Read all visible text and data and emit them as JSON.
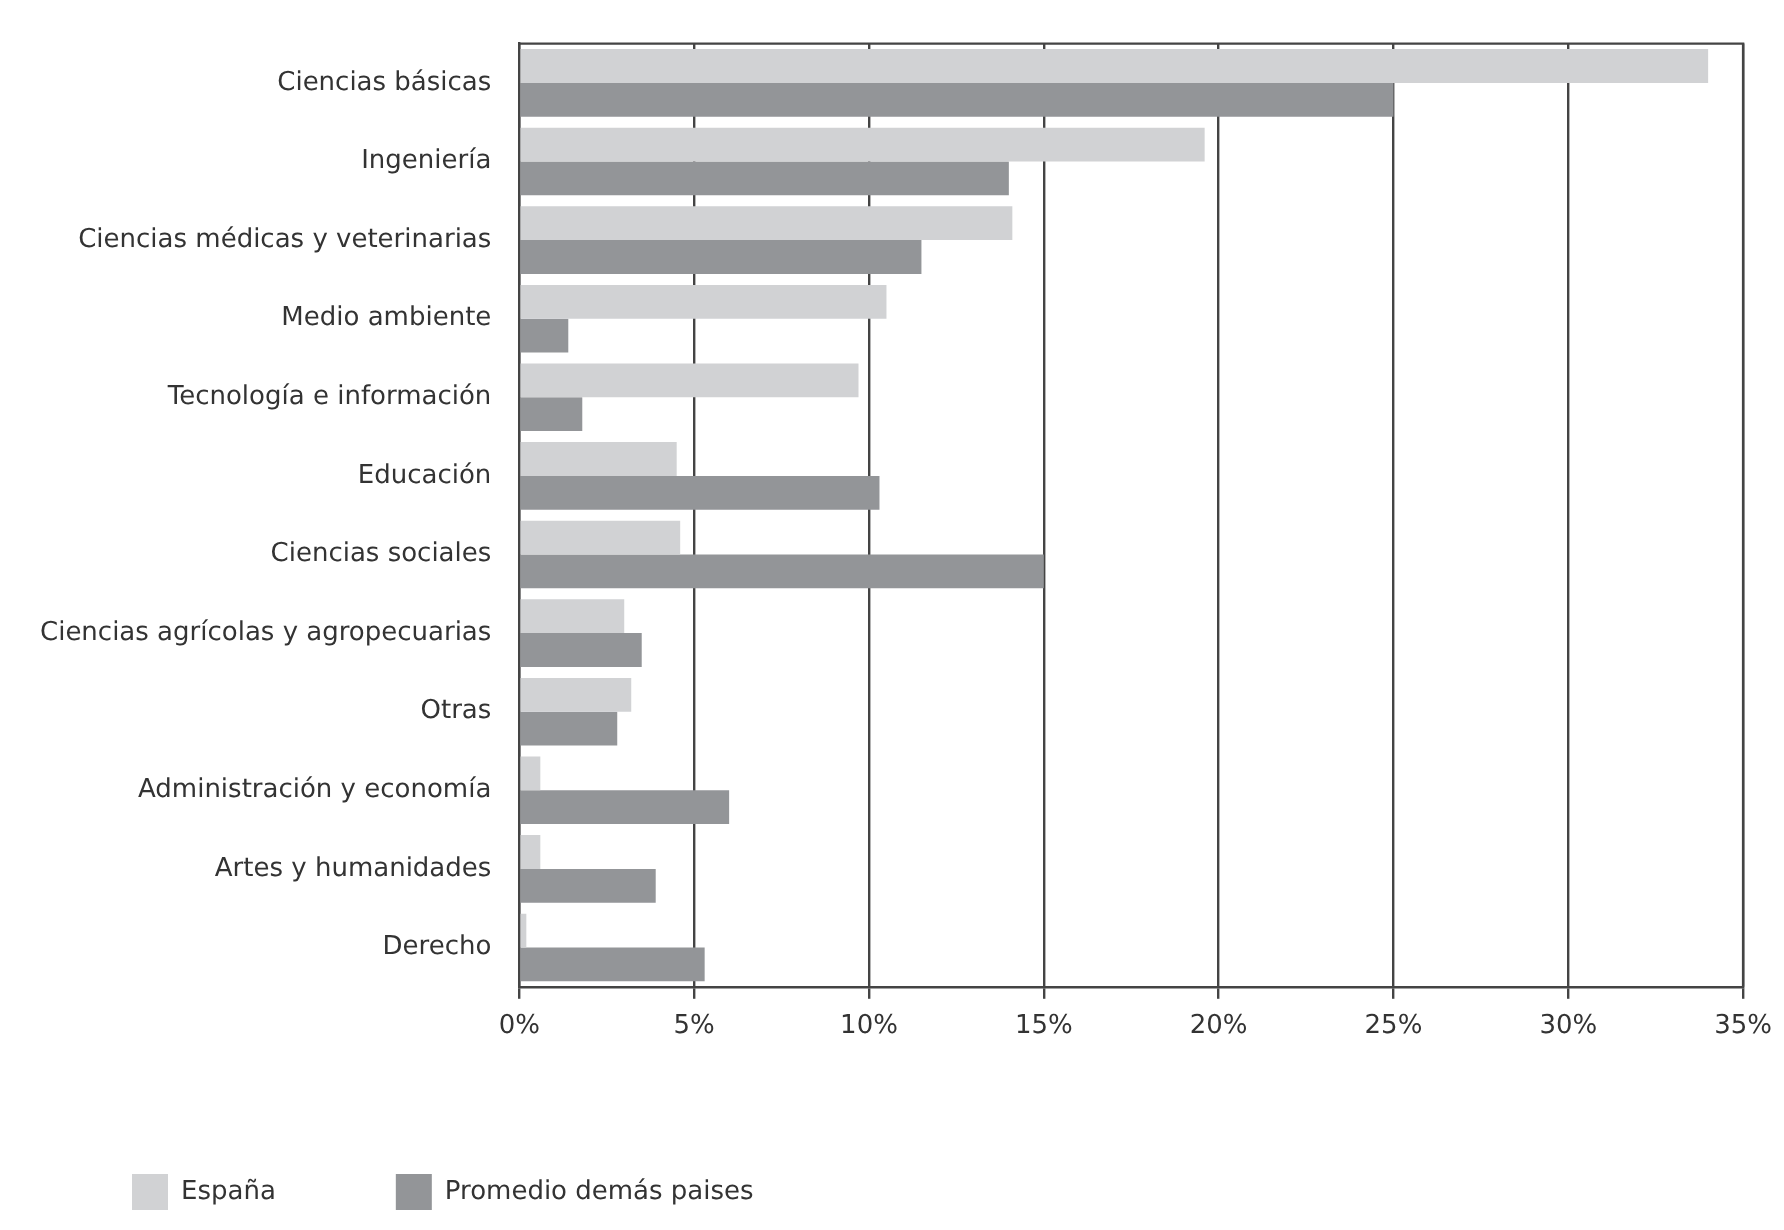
{
  "chart_data": {
    "type": "bar",
    "orientation": "horizontal",
    "categories": [
      "Ciencias básicas",
      "Ingeniería",
      "Ciencias médicas y veterinarias",
      "Medio ambiente",
      "Tecnología e información",
      "Educación",
      "Ciencias sociales",
      "Ciencias agrícolas y agropecuarias",
      "Otras",
      "Administración y economía",
      "Artes y humanidades",
      "Derecho"
    ],
    "series": [
      {
        "name": "España",
        "color": "#d1d2d4",
        "values": [
          34,
          19.6,
          14.1,
          10.5,
          9.7,
          4.5,
          4.6,
          3.0,
          3.2,
          0.6,
          0.6,
          0.2
        ]
      },
      {
        "name": "Promedio demás paises",
        "color": "#939598",
        "values": [
          25,
          14.0,
          11.5,
          1.4,
          1.8,
          10.3,
          15,
          3.5,
          2.8,
          6.0,
          3.9,
          5.3
        ]
      }
    ],
    "xlim": [
      0,
      35
    ],
    "xticks": [
      {
        "value": 0,
        "label": "0%"
      },
      {
        "value": 5,
        "label": "5%"
      },
      {
        "value": 10,
        "label": "10%"
      },
      {
        "value": 15,
        "label": "15%"
      },
      {
        "value": 20,
        "label": "20%"
      },
      {
        "value": 25,
        "label": "25%"
      },
      {
        "value": 30,
        "label": "30%"
      },
      {
        "value": 35,
        "label": "35%"
      }
    ],
    "grid": "x",
    "legend": "bottom"
  }
}
